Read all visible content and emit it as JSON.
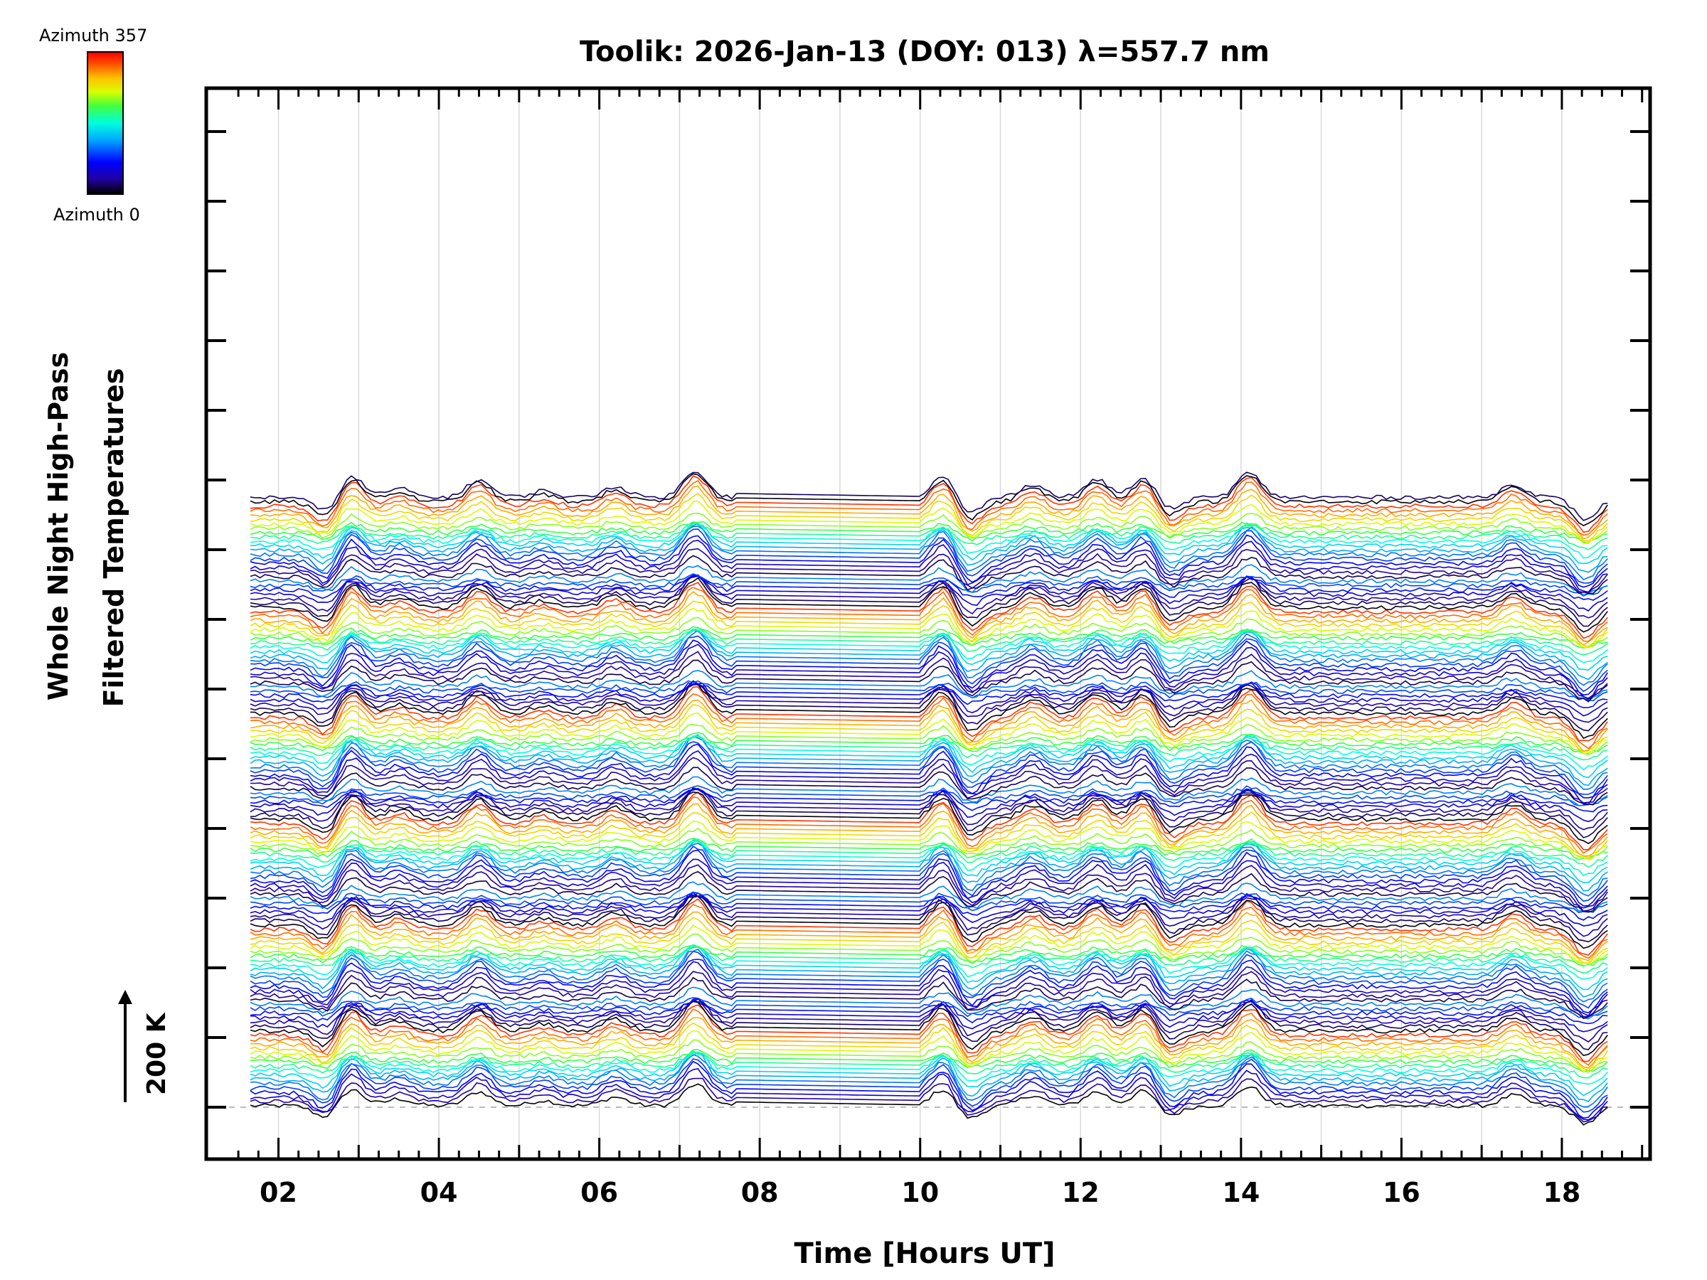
{
  "chart_data": {
    "type": "line",
    "title": "Toolik: 2026-Jan-13 (DOY: 013) λ=557.7 nm",
    "xlabel": "Time [Hours UT]",
    "ylabel_lines": [
      "Whole Night High-Pass",
      "Filtered Temperatures"
    ],
    "x_ticks": [
      "02",
      "04",
      "06",
      "08",
      "10",
      "12",
      "14",
      "16",
      "18"
    ],
    "x_tick_values": [
      2,
      4,
      6,
      8,
      10,
      12,
      14,
      16,
      18
    ],
    "xlim": [
      1.1,
      19.1
    ],
    "x_data_range": [
      1.65,
      18.6
    ],
    "data_gap_hours": [
      7.7,
      10.0
    ],
    "n_traces": 139,
    "trace_offset_K": 10,
    "scale_bar": {
      "label": "200 K",
      "value_K": 200
    },
    "colorbar": {
      "top_label": "Azimuth 357",
      "bottom_label": "Azimuth 0",
      "min": 0,
      "max": 357
    },
    "wave_features": [
      {
        "t": 2.6,
        "amp": -7
      },
      {
        "t": 2.9,
        "amp": 10
      },
      {
        "t": 3.5,
        "amp": 4
      },
      {
        "t": 4.5,
        "amp": 8
      },
      {
        "t": 5.3,
        "amp": 3
      },
      {
        "t": 6.2,
        "amp": 5
      },
      {
        "t": 7.2,
        "amp": 12
      },
      {
        "t": 10.3,
        "amp": 10
      },
      {
        "t": 10.6,
        "amp": -8
      },
      {
        "t": 11.4,
        "amp": 6
      },
      {
        "t": 12.2,
        "amp": 8
      },
      {
        "t": 12.8,
        "amp": 9
      },
      {
        "t": 13.1,
        "amp": -6
      },
      {
        "t": 14.1,
        "amp": 11
      },
      {
        "t": 17.4,
        "amp": 6
      },
      {
        "t": 18.3,
        "amp": -10
      }
    ]
  }
}
